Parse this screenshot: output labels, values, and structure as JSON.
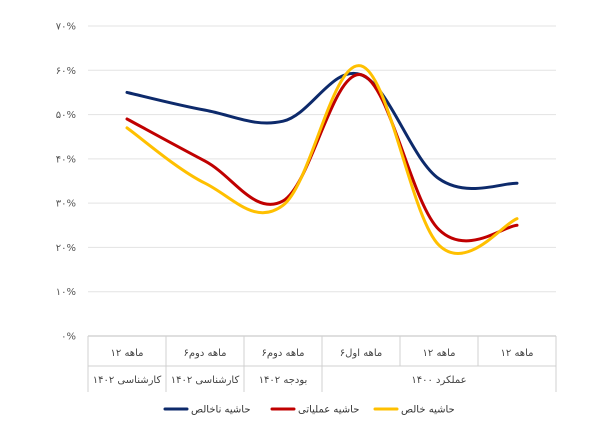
{
  "chart_data": {
    "type": "line",
    "categories": [
      "۱۲ ماهه",
      "۱۲ ماهه",
      "۶ماهه اول",
      "۶ماهه دوم",
      "۶ماهه دوم",
      "۱۲ ماهه"
    ],
    "category_groups": [
      {
        "label": "عملکرد ۱۴۰۰",
        "span": 3
      },
      {
        "label": "بودجه ۱۴۰۲",
        "span": 1
      },
      {
        "label": "کارشناسی ۱۴۰۲",
        "span": 1
      },
      {
        "label": "کارشناسی ۱۴۰۲",
        "span": 1
      }
    ],
    "y_ticks": [
      "۰%",
      "۱۰%",
      "۲۰%",
      "۳۰%",
      "۴۰%",
      "۵۰%",
      "۶۰%",
      "۷۰%"
    ],
    "ylim": [
      0,
      70
    ],
    "series": [
      {
        "name": "حاشیه ناخالص",
        "color": "#0d2a6b",
        "values": [
          34.5,
          35.5,
          59,
          48.5,
          51,
          55
        ]
      },
      {
        "name": "حاشیه عملیاتی",
        "color": "#c00000",
        "values": [
          25,
          24,
          59,
          30.5,
          39.5,
          49
        ]
      },
      {
        "name": "حاشیه خالص",
        "color": "#ffc000",
        "values": [
          26.5,
          20.5,
          61,
          29.5,
          34.5,
          47
        ]
      }
    ],
    "grid": true,
    "legend_position": "bottom"
  }
}
